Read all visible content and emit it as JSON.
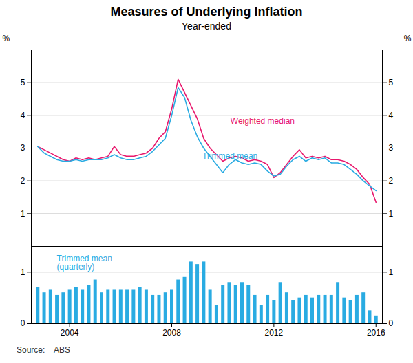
{
  "chart_data": [
    {
      "type": "line",
      "title": "Measures of Underlying Inflation",
      "subtitle": "Year-ended",
      "source": "Source:    ABS",
      "x": [
        2002.75,
        2003.0,
        2003.25,
        2003.5,
        2003.75,
        2004.0,
        2004.25,
        2004.5,
        2004.75,
        2005.0,
        2005.25,
        2005.5,
        2005.75,
        2006.0,
        2006.25,
        2006.5,
        2006.75,
        2007.0,
        2007.25,
        2007.5,
        2007.75,
        2008.0,
        2008.25,
        2008.5,
        2008.75,
        2009.0,
        2009.25,
        2009.5,
        2009.75,
        2010.0,
        2010.25,
        2010.5,
        2010.75,
        2011.0,
        2011.25,
        2011.5,
        2011.75,
        2012.0,
        2012.25,
        2012.5,
        2012.75,
        2013.0,
        2013.25,
        2013.5,
        2013.75,
        2014.0,
        2014.25,
        2014.5,
        2014.75,
        2015.0,
        2015.25,
        2015.5,
        2015.75,
        2016.0
      ],
      "series": [
        {
          "name": "Weighted median",
          "color": "#E8186D",
          "values": [
            3.05,
            2.95,
            2.85,
            2.75,
            2.65,
            2.6,
            2.7,
            2.65,
            2.7,
            2.65,
            2.7,
            2.75,
            3.05,
            2.8,
            2.75,
            2.75,
            2.8,
            2.85,
            3.0,
            3.3,
            3.5,
            4.2,
            5.1,
            4.7,
            4.3,
            3.9,
            3.3,
            3.0,
            2.8,
            2.6,
            2.7,
            2.75,
            2.7,
            2.6,
            2.65,
            2.6,
            2.5,
            2.1,
            2.25,
            2.5,
            2.75,
            2.95,
            2.7,
            2.75,
            2.7,
            2.75,
            2.65,
            2.65,
            2.6,
            2.5,
            2.35,
            2.1,
            1.9,
            1.35
          ]
        },
        {
          "name": "Trimmed mean",
          "color": "#29ABE2",
          "values": [
            3.05,
            2.85,
            2.75,
            2.65,
            2.6,
            2.6,
            2.65,
            2.6,
            2.65,
            2.65,
            2.65,
            2.7,
            2.8,
            2.7,
            2.65,
            2.65,
            2.7,
            2.75,
            2.9,
            3.1,
            3.3,
            4.0,
            4.85,
            4.55,
            3.85,
            3.35,
            3.0,
            2.75,
            2.5,
            2.25,
            2.5,
            2.65,
            2.55,
            2.5,
            2.55,
            2.5,
            2.3,
            2.15,
            2.2,
            2.45,
            2.65,
            2.75,
            2.6,
            2.7,
            2.65,
            2.7,
            2.55,
            2.55,
            2.5,
            2.35,
            2.2,
            2.0,
            1.85,
            1.7
          ]
        }
      ],
      "xlim": [
        2002.5,
        2016.25
      ],
      "ylim": [
        0,
        6
      ],
      "yticks": [
        1,
        2,
        3,
        4,
        5
      ],
      "y2lim": [
        0,
        6
      ],
      "y2ticks": [
        1,
        2,
        3,
        4,
        5
      ],
      "ylabel": "%",
      "y2label": "%",
      "grid": true,
      "tick_labels": "y",
      "annotations": [
        {
          "text": "Weighted median",
          "x": 2010.3,
          "y": 3.75,
          "color": "#E8186D"
        },
        {
          "text": "Trimmed mean",
          "x": 2009.2,
          "y": 2.68,
          "color": "#29ABE2"
        }
      ]
    },
    {
      "type": "bar",
      "x": [
        2002.75,
        2003.0,
        2003.25,
        2003.5,
        2003.75,
        2004.0,
        2004.25,
        2004.5,
        2004.75,
        2005.0,
        2005.25,
        2005.5,
        2005.75,
        2006.0,
        2006.25,
        2006.5,
        2006.75,
        2007.0,
        2007.25,
        2007.5,
        2007.75,
        2008.0,
        2008.25,
        2008.5,
        2008.75,
        2009.0,
        2009.25,
        2009.5,
        2009.75,
        2010.0,
        2010.25,
        2010.5,
        2010.75,
        2011.0,
        2011.25,
        2011.5,
        2011.75,
        2012.0,
        2012.25,
        2012.5,
        2012.75,
        2013.0,
        2013.25,
        2013.5,
        2013.75,
        2014.0,
        2014.25,
        2014.5,
        2014.75,
        2015.0,
        2015.25,
        2015.5,
        2015.75,
        2016.0
      ],
      "values": [
        0.7,
        0.6,
        0.65,
        0.55,
        0.6,
        0.65,
        0.7,
        0.65,
        0.75,
        0.85,
        0.6,
        0.65,
        0.65,
        0.65,
        0.65,
        0.65,
        0.7,
        0.65,
        0.55,
        0.55,
        0.6,
        0.65,
        0.85,
        0.9,
        1.2,
        1.15,
        1.2,
        0.65,
        0.35,
        0.75,
        0.8,
        0.75,
        0.8,
        0.75,
        0.55,
        0.35,
        0.55,
        0.45,
        0.8,
        0.6,
        0.45,
        0.5,
        0.55,
        0.5,
        0.55,
        0.55,
        0.55,
        0.8,
        0.5,
        0.45,
        0.55,
        0.6,
        0.25,
        0.15
      ],
      "color": "#29ABE2",
      "xlim": [
        2002.5,
        2016.25
      ],
      "xticks": [
        2004,
        2008,
        2012,
        2016
      ],
      "ylim": [
        0,
        1.5
      ],
      "yticks": [
        0,
        1
      ],
      "y2lim": [
        0,
        1.5
      ],
      "y2ticks": [
        0,
        1
      ],
      "grid": true,
      "annotations": [
        {
          "text": "Trimmed mean\n(quarterly)",
          "x": 2003.5,
          "y": 1.05,
          "color": "#29ABE2"
        }
      ]
    }
  ]
}
